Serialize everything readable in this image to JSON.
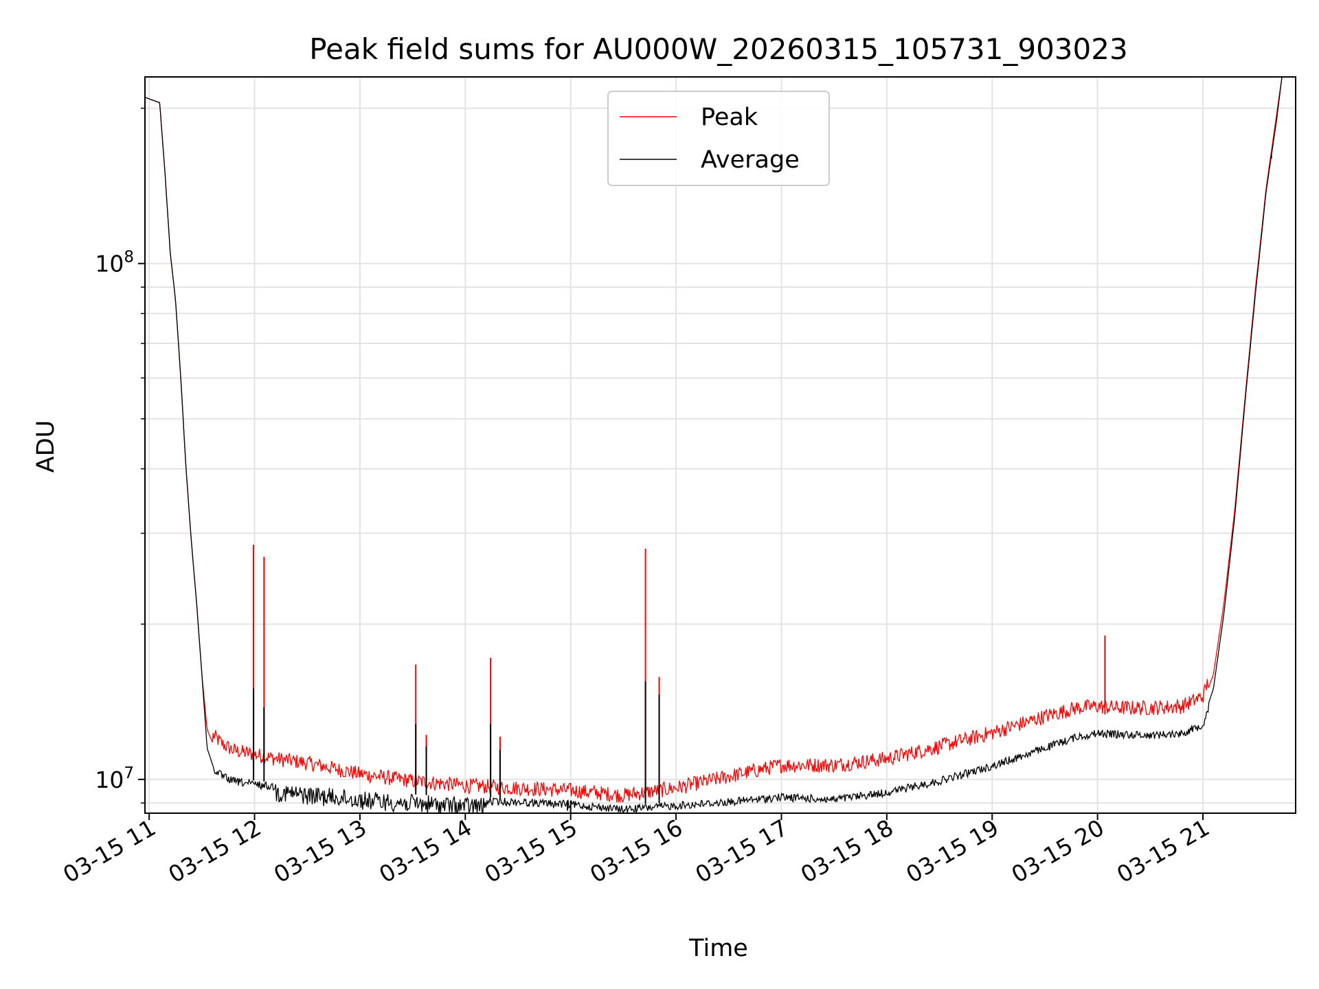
{
  "chart_data": {
    "type": "line",
    "title": "Peak field sums for AU000W_20260315_105731_903023",
    "xlabel": "Time",
    "ylabel": "ADU",
    "yscale": "log",
    "ylim": [
      8600000,
      230000000
    ],
    "xlim": [
      10.96,
      21.88
    ],
    "grid": true,
    "legend_position": "top-center",
    "x_ticks": [
      {
        "value": 11,
        "label": "03-15 11"
      },
      {
        "value": 12,
        "label": "03-15 12"
      },
      {
        "value": 13,
        "label": "03-15 13"
      },
      {
        "value": 14,
        "label": "03-15 14"
      },
      {
        "value": 15,
        "label": "03-15 15"
      },
      {
        "value": 16,
        "label": "03-15 16"
      },
      {
        "value": 17,
        "label": "03-15 17"
      },
      {
        "value": 18,
        "label": "03-15 18"
      },
      {
        "value": 19,
        "label": "03-15 19"
      },
      {
        "value": 20,
        "label": "03-15 20"
      },
      {
        "value": 21,
        "label": "03-15 21"
      }
    ],
    "y_ticks": [
      {
        "value": 10000000,
        "base": "10",
        "exp": "7"
      },
      {
        "value": 100000000,
        "base": "10",
        "exp": "8"
      }
    ],
    "y_minor_ticks": [
      9000000,
      20000000,
      30000000,
      40000000,
      50000000,
      60000000,
      70000000,
      80000000,
      90000000,
      200000000
    ],
    "series": [
      {
        "name": "Peak",
        "color": "#ff0000",
        "x": [
          10.96,
          11.1,
          11.15,
          11.2,
          11.25,
          11.3,
          11.35,
          11.4,
          11.45,
          11.5,
          11.55,
          11.6,
          11.7,
          11.8,
          12.0,
          12.2,
          12.5,
          12.8,
          13.0,
          13.5,
          14.0,
          14.5,
          15.0,
          15.5,
          16.0,
          16.5,
          17.0,
          17.5,
          18.0,
          18.5,
          19.0,
          19.5,
          19.8,
          20.0,
          20.2,
          20.5,
          20.8,
          21.0,
          21.1,
          21.2,
          21.3,
          21.4,
          21.5,
          21.6,
          21.7,
          21.75
        ],
        "y": [
          210000000,
          205000000,
          150000000,
          105000000,
          85000000,
          60000000,
          40000000,
          29000000,
          22000000,
          16000000,
          12500000,
          11800000,
          11300000,
          11000000,
          10800000,
          10600000,
          10400000,
          10100000,
          9900000,
          9600000,
          9400000,
          9300000,
          9200000,
          9000000,
          9300000,
          9800000,
          10300000,
          10300000,
          10600000,
          11200000,
          11900000,
          12800000,
          13300000,
          13400000,
          13300000,
          13300000,
          13400000,
          14000000,
          16000000,
          22000000,
          33000000,
          55000000,
          90000000,
          140000000,
          195000000,
          230000000
        ]
      },
      {
        "name": "Average",
        "color": "#000000",
        "x": [
          10.96,
          11.1,
          11.15,
          11.2,
          11.25,
          11.3,
          11.35,
          11.4,
          11.45,
          11.5,
          11.55,
          11.6,
          11.7,
          11.8,
          12.0,
          12.2,
          12.5,
          12.8,
          13.0,
          13.5,
          14.0,
          14.5,
          15.0,
          15.5,
          16.0,
          16.5,
          17.0,
          17.5,
          18.0,
          18.5,
          19.0,
          19.5,
          19.8,
          20.0,
          20.2,
          20.5,
          20.8,
          21.0,
          21.1,
          21.2,
          21.3,
          21.4,
          21.5,
          21.6,
          21.7,
          21.75
        ],
        "y": [
          210000000,
          205000000,
          150000000,
          105000000,
          85000000,
          60000000,
          40000000,
          29000000,
          22000000,
          16000000,
          11500000,
          10700000,
          10300000,
          10100000,
          9950000,
          9850000,
          9700000,
          9600000,
          9500000,
          9350000,
          9250000,
          9200000,
          9100000,
          8900000,
          9050000,
          9200000,
          9400000,
          9300000,
          9600000,
          10100000,
          10800000,
          11700000,
          12300000,
          12500000,
          12450000,
          12400000,
          12500000,
          13000000,
          15000000,
          21000000,
          32000000,
          54000000,
          88000000,
          138000000,
          190000000,
          230000000
        ]
      }
    ],
    "spikes": [
      {
        "series": "Peak",
        "x": 11.99,
        "y": 28500000
      },
      {
        "series": "Peak",
        "x": 12.09,
        "y": 27000000
      },
      {
        "series": "Peak",
        "x": 13.53,
        "y": 16700000
      },
      {
        "series": "Peak",
        "x": 13.63,
        "y": 12200000
      },
      {
        "series": "Peak",
        "x": 14.24,
        "y": 17200000
      },
      {
        "series": "Peak",
        "x": 14.33,
        "y": 12100000
      },
      {
        "series": "Peak",
        "x": 15.71,
        "y": 28000000
      },
      {
        "series": "Peak",
        "x": 15.84,
        "y": 15800000
      },
      {
        "series": "Peak",
        "x": 20.07,
        "y": 19000000
      },
      {
        "series": "Average",
        "x": 11.99,
        "y": 15000000
      },
      {
        "series": "Average",
        "x": 12.09,
        "y": 13800000
      },
      {
        "series": "Average",
        "x": 13.53,
        "y": 12800000
      },
      {
        "series": "Average",
        "x": 13.63,
        "y": 11600000
      },
      {
        "series": "Average",
        "x": 14.24,
        "y": 12800000
      },
      {
        "series": "Average",
        "x": 14.33,
        "y": 11400000
      },
      {
        "series": "Average",
        "x": 15.71,
        "y": 15500000
      },
      {
        "series": "Average",
        "x": 15.84,
        "y": 14600000
      },
      {
        "series": "Average",
        "x": 15.0,
        "y": 8600000
      },
      {
        "series": "Average",
        "x": 14.97,
        "y": 8700000
      },
      {
        "series": "Average",
        "x": 21.65,
        "y": 160000000
      }
    ]
  }
}
